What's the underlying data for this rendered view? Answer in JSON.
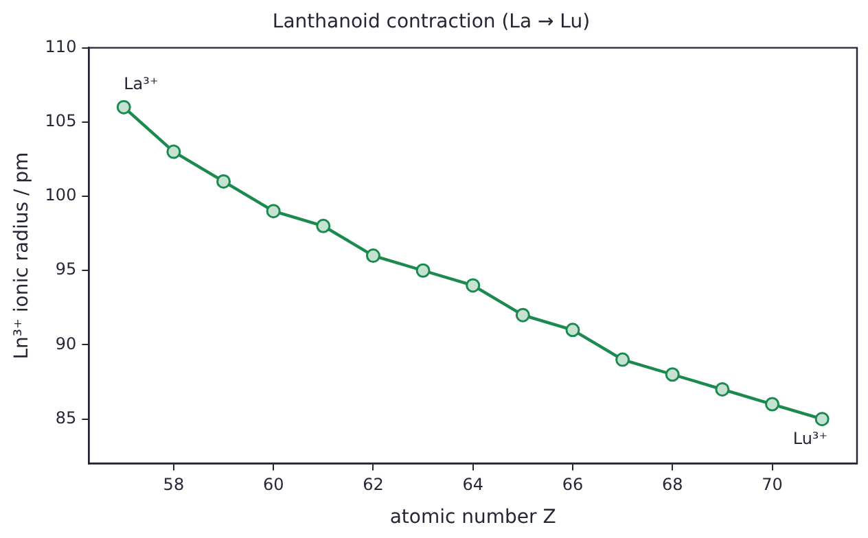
{
  "chart_data": {
    "type": "line",
    "title": "Lanthanoid contraction (La → Lu)",
    "xlabel": "atomic number Z",
    "ylabel": "Ln³⁺ ionic radius / pm",
    "x": [
      57,
      58,
      59,
      60,
      61,
      62,
      63,
      64,
      65,
      66,
      67,
      68,
      69,
      70,
      71
    ],
    "series": [
      {
        "color": "#1a8a4f",
        "values": [
          106,
          103,
          101,
          99,
          98,
          96,
          95,
          94,
          92,
          91,
          89,
          88,
          87,
          86,
          85
        ]
      }
    ],
    "xlim": [
      56.3,
      71.7
    ],
    "xticks": [
      58,
      60,
      62,
      64,
      66,
      68,
      70
    ],
    "ylim": [
      82,
      110
    ],
    "yticks": [
      85,
      90,
      95,
      100,
      105,
      110
    ],
    "grid": false,
    "legend": false,
    "marker": "circle",
    "line_style": "solid",
    "annotations": [
      {
        "text": "La³⁺",
        "x": 57,
        "y": 106
      },
      {
        "text": "Lu³⁺",
        "x": 71,
        "y": 85
      }
    ]
  }
}
